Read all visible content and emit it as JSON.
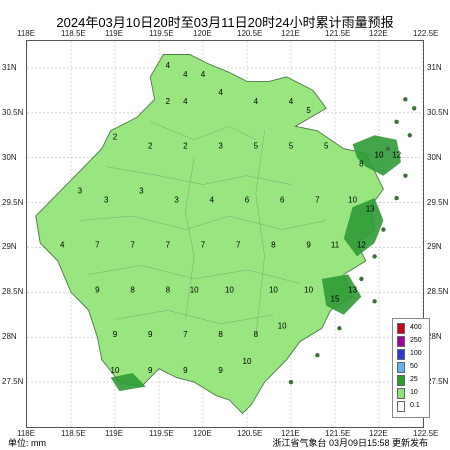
{
  "title": "2024年03月10日20时至03月11日20时24小时累计雨量预报",
  "unit_label": "单位:  mm",
  "footer": "浙江省气象台  03月09日15:58  更新发布",
  "x_ticks": [
    "118E",
    "118.5E",
    "119E",
    "119.5E",
    "120E",
    "120.5E",
    "121E",
    "121.5E",
    "122E",
    "122.5E"
  ],
  "y_ticks": [
    "31N",
    "30.5N",
    "30N",
    "29.5N",
    "29N",
    "28.5N",
    "28N",
    "27.5N"
  ],
  "legend": [
    {
      "label": "400",
      "color": "#c8001e"
    },
    {
      "label": "250",
      "color": "#a0009a"
    },
    {
      "label": "100",
      "color": "#2a3cd2"
    },
    {
      "label": "50",
      "color": "#66b2ee"
    },
    {
      "label": "25",
      "color": "#2aa02a"
    },
    {
      "label": "10",
      "color": "#8ee27a"
    },
    {
      "label": "0.1",
      "color": "#ffffff"
    }
  ],
  "colors": {
    "land": "#99e57f",
    "heavy": "#2f9a36",
    "border": "#6d8f6a"
  },
  "chart_data": {
    "type": "map",
    "lon_range": [
      118,
      122.5
    ],
    "lat_range": [
      27.0,
      31.3
    ],
    "values": [
      {
        "lon": 119.6,
        "lat": 31.0,
        "v": "4"
      },
      {
        "lon": 119.8,
        "lat": 30.9,
        "v": "4"
      },
      {
        "lon": 120.0,
        "lat": 30.9,
        "v": "4"
      },
      {
        "lon": 119.6,
        "lat": 30.6,
        "v": "2"
      },
      {
        "lon": 119.8,
        "lat": 30.6,
        "v": "4"
      },
      {
        "lon": 120.2,
        "lat": 30.7,
        "v": "4"
      },
      {
        "lon": 120.6,
        "lat": 30.6,
        "v": "4"
      },
      {
        "lon": 121.0,
        "lat": 30.6,
        "v": "4"
      },
      {
        "lon": 121.2,
        "lat": 30.5,
        "v": "5"
      },
      {
        "lon": 119.0,
        "lat": 30.2,
        "v": "2"
      },
      {
        "lon": 119.4,
        "lat": 30.1,
        "v": "2"
      },
      {
        "lon": 119.8,
        "lat": 30.1,
        "v": "2"
      },
      {
        "lon": 120.2,
        "lat": 30.1,
        "v": "3"
      },
      {
        "lon": 120.6,
        "lat": 30.1,
        "v": "5"
      },
      {
        "lon": 121.0,
        "lat": 30.1,
        "v": "5"
      },
      {
        "lon": 121.4,
        "lat": 30.1,
        "v": "5"
      },
      {
        "lon": 121.8,
        "lat": 29.9,
        "v": "8"
      },
      {
        "lon": 122.0,
        "lat": 30.0,
        "v": "10"
      },
      {
        "lon": 122.2,
        "lat": 30.0,
        "v": "12"
      },
      {
        "lon": 118.6,
        "lat": 29.6,
        "v": "3"
      },
      {
        "lon": 118.9,
        "lat": 29.5,
        "v": "3"
      },
      {
        "lon": 119.3,
        "lat": 29.6,
        "v": "3"
      },
      {
        "lon": 119.7,
        "lat": 29.5,
        "v": "3"
      },
      {
        "lon": 120.1,
        "lat": 29.5,
        "v": "4"
      },
      {
        "lon": 120.5,
        "lat": 29.5,
        "v": "6"
      },
      {
        "lon": 120.9,
        "lat": 29.5,
        "v": "6"
      },
      {
        "lon": 121.3,
        "lat": 29.5,
        "v": "7"
      },
      {
        "lon": 121.7,
        "lat": 29.5,
        "v": "10"
      },
      {
        "lon": 121.9,
        "lat": 29.4,
        "v": "13"
      },
      {
        "lon": 118.4,
        "lat": 29.0,
        "v": "4"
      },
      {
        "lon": 118.8,
        "lat": 29.0,
        "v": "7"
      },
      {
        "lon": 119.2,
        "lat": 29.0,
        "v": "7"
      },
      {
        "lon": 119.6,
        "lat": 29.0,
        "v": "7"
      },
      {
        "lon": 120.0,
        "lat": 29.0,
        "v": "7"
      },
      {
        "lon": 120.4,
        "lat": 29.0,
        "v": "7"
      },
      {
        "lon": 120.8,
        "lat": 29.0,
        "v": "8"
      },
      {
        "lon": 121.2,
        "lat": 29.0,
        "v": "9"
      },
      {
        "lon": 121.5,
        "lat": 29.0,
        "v": "11"
      },
      {
        "lon": 121.8,
        "lat": 29.0,
        "v": "12"
      },
      {
        "lon": 118.8,
        "lat": 28.5,
        "v": "9"
      },
      {
        "lon": 119.2,
        "lat": 28.5,
        "v": "8"
      },
      {
        "lon": 119.6,
        "lat": 28.5,
        "v": "8"
      },
      {
        "lon": 119.9,
        "lat": 28.5,
        "v": "10"
      },
      {
        "lon": 120.3,
        "lat": 28.5,
        "v": "10"
      },
      {
        "lon": 120.8,
        "lat": 28.5,
        "v": "10"
      },
      {
        "lon": 121.2,
        "lat": 28.5,
        "v": "10"
      },
      {
        "lon": 121.5,
        "lat": 28.4,
        "v": "15"
      },
      {
        "lon": 121.7,
        "lat": 28.5,
        "v": "13"
      },
      {
        "lon": 119.0,
        "lat": 28.0,
        "v": "9"
      },
      {
        "lon": 119.4,
        "lat": 28.0,
        "v": "9"
      },
      {
        "lon": 119.8,
        "lat": 28.0,
        "v": "7"
      },
      {
        "lon": 120.2,
        "lat": 28.0,
        "v": "8"
      },
      {
        "lon": 120.6,
        "lat": 28.0,
        "v": "8"
      },
      {
        "lon": 120.9,
        "lat": 28.1,
        "v": "10"
      },
      {
        "lon": 119.0,
        "lat": 27.6,
        "v": "10"
      },
      {
        "lon": 119.4,
        "lat": 27.6,
        "v": "9"
      },
      {
        "lon": 119.8,
        "lat": 27.6,
        "v": "9"
      },
      {
        "lon": 120.2,
        "lat": 27.6,
        "v": "9"
      },
      {
        "lon": 120.5,
        "lat": 27.7,
        "v": "10"
      }
    ]
  }
}
